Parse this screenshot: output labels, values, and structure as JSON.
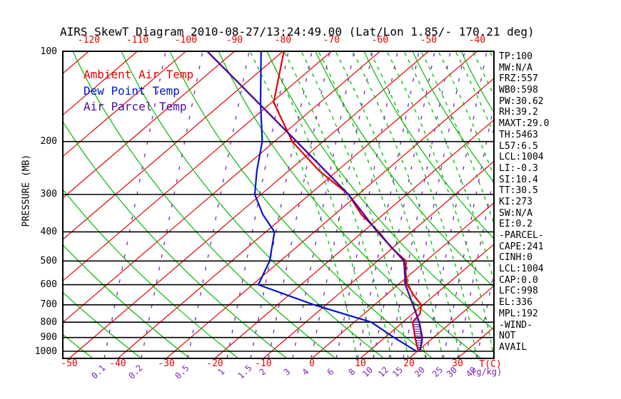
{
  "title": "AIRS SkewT Diagram 2010-08-27/13:24:49.00 (Lat/Lon 1.85/- 170.21 deg)",
  "colors": {
    "red": "#e60000",
    "green": "#00bb00",
    "blue": "#0014cc",
    "parcel_purple": "#4b0c9c",
    "mixing_purple": "#7d22b5",
    "black": "#000000"
  },
  "legend": {
    "items": [
      {
        "label": "Ambient Air Temp",
        "color": "red"
      },
      {
        "label": "Dew Point Temp",
        "color": "blue"
      },
      {
        "label": "Air Parcel Temp",
        "color": "parcel_purple"
      }
    ]
  },
  "axes": {
    "pressure": {
      "label": "PRESSURE (MB)",
      "ticks": [
        100,
        200,
        300,
        400,
        500,
        600,
        700,
        800,
        900,
        1000
      ]
    },
    "temp_top": {
      "ticks": [
        -120,
        -110,
        -100,
        -90,
        -80,
        -70,
        -60,
        -50,
        -40
      ]
    },
    "temp_bottom": {
      "ticks": [
        -50,
        -40,
        -30,
        -20,
        -10,
        0,
        10,
        20,
        30
      ],
      "unit": "T(C)"
    },
    "mixing": {
      "ticks": [
        0.1,
        0.2,
        0.5,
        1,
        1.5,
        2,
        3,
        4,
        6,
        8,
        10,
        12,
        15,
        20,
        25,
        30,
        40
      ],
      "unit": "(g/kg)"
    }
  },
  "panel": {
    "lines": [
      "TP:100",
      "MW:N/A",
      "FRZ:557",
      "WB0:598",
      "PW:30.62",
      "RH:39.2",
      "MAXT:29.0",
      "TH:5463",
      "L57:6.5",
      "LCL:1004",
      "LI:-0.3",
      "SI:10.4",
      "TT:30.5",
      "KI:273",
      "SW:N/A",
      "EI:0.2",
      "-PARCEL-",
      "CAPE:241",
      "CINH:0",
      "LCL:1004",
      "CAP:0.0",
      "LFC:998",
      "EL:336",
      "MPL:192",
      "-WIND-",
      "NOT",
      "AVAIL"
    ]
  },
  "chart_data": {
    "type": "line",
    "title": "AIRS SkewT Diagram 2010-08-27/13:24:49.00",
    "x_axis": "Temperature (C), skewed isotherms",
    "y_axis": "Pressure (MB), log scale",
    "y_range": [
      100,
      1050
    ],
    "x_tick_range": [
      -120,
      40
    ],
    "grid": {
      "isotherms_c_step": 10,
      "pressure_lines_mb": [
        100,
        200,
        300,
        400,
        500,
        600,
        700,
        800,
        900,
        1000
      ],
      "mixing_ratio_g_kg": [
        0.1,
        0.2,
        0.5,
        1,
        1.5,
        2,
        3,
        4,
        6,
        8,
        10,
        12,
        15,
        20,
        25,
        30,
        40
      ]
    },
    "series": [
      {
        "name": "Ambient Air Temp",
        "color": "red",
        "points_mb_c": [
          [
            100,
            -79.8
          ],
          [
            148,
            -69.6
          ],
          [
            200,
            -56.3
          ],
          [
            250,
            -43.8
          ],
          [
            300,
            -32.0
          ],
          [
            350,
            -24.5
          ],
          [
            400,
            -16.7
          ],
          [
            450,
            -10.5
          ],
          [
            500,
            -4.1
          ],
          [
            550,
            -1.2
          ],
          [
            600,
            1.9
          ],
          [
            650,
            5.7
          ],
          [
            700,
            9.6
          ],
          [
            750,
            11.5
          ],
          [
            800,
            12.0
          ],
          [
            850,
            14.2
          ],
          [
            900,
            16.2
          ],
          [
            1000,
            20.2
          ]
        ]
      },
      {
        "name": "Dew Point Temp",
        "color": "blue",
        "points_mb_c": [
          [
            100,
            -84.5
          ],
          [
            148,
            -72.3
          ],
          [
            200,
            -62.5
          ],
          [
            250,
            -56.6
          ],
          [
            300,
            -51.3
          ],
          [
            350,
            -44.8
          ],
          [
            400,
            -38.2
          ],
          [
            500,
            -32.2
          ],
          [
            600,
            -28.8
          ],
          [
            700,
            -12.5
          ],
          [
            800,
            3.5
          ],
          [
            900,
            11.9
          ],
          [
            1000,
            19.8
          ]
        ]
      },
      {
        "name": "Air Parcel Temp",
        "color": "parcel_purple",
        "points_mb_c": [
          [
            100,
            -95.6
          ],
          [
            200,
            -55.4
          ],
          [
            300,
            -32.0
          ],
          [
            400,
            -17.0
          ],
          [
            500,
            -4.5
          ],
          [
            600,
            1.5
          ],
          [
            700,
            7.9
          ],
          [
            800,
            13.4
          ],
          [
            900,
            17.7
          ],
          [
            950,
            19.2
          ],
          [
            1000,
            20.5
          ]
        ]
      }
    ],
    "cape_hatch": {
      "between": [
        "Air Parcel Temp",
        "Ambient Air Temp"
      ],
      "pressure_range_mb": [
        770,
        1000
      ]
    }
  }
}
